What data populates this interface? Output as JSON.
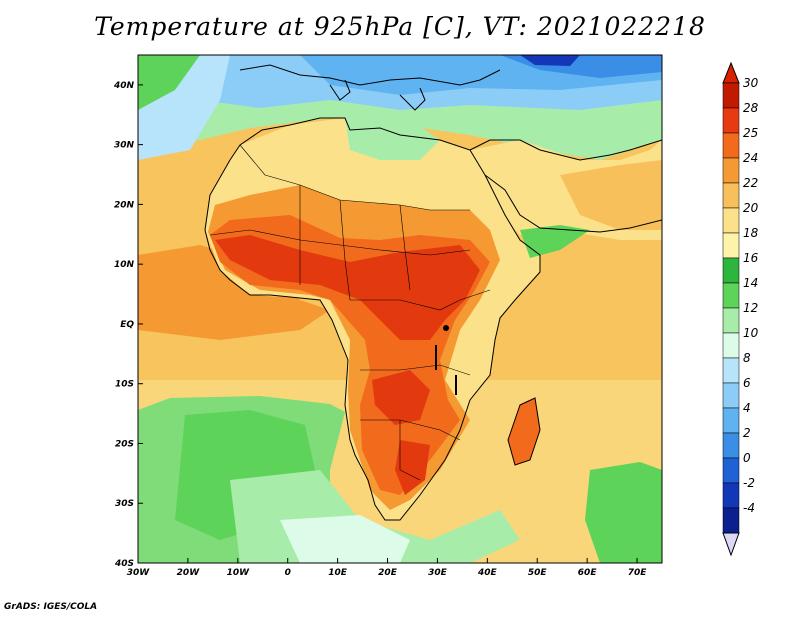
{
  "title": "Temperature at 925hPa [C], VT: 2021022218",
  "credit": "GrADS: IGES/COLA",
  "map": {
    "variable": "Temperature at 925hPa",
    "units": "C",
    "valid_time": "2021022218",
    "lon_range": [
      -30,
      75
    ],
    "lat_range": [
      -40,
      45
    ],
    "x_ticks": [
      "30W",
      "20W",
      "10W",
      "0",
      "10E",
      "20E",
      "30E",
      "40E",
      "50E",
      "60E",
      "70E"
    ],
    "y_ticks": [
      "40N",
      "30N",
      "20N",
      "10N",
      "EQ",
      "10S",
      "20S",
      "30S",
      "40S"
    ]
  },
  "colorbar": {
    "labels": [
      "30",
      "28",
      "25",
      "24",
      "22",
      "20",
      "18",
      "16",
      "14",
      "12",
      "10",
      "8",
      "6",
      "4",
      "2",
      "0",
      "-2",
      "-4"
    ],
    "colors": [
      "#c21a00",
      "#e83a10",
      "#f26a1c",
      "#f59a32",
      "#f8c05a",
      "#fbe18a",
      "#fdf3aa",
      "#2eb53e",
      "#5ed35a",
      "#a8ecaa",
      "#dcfbe8",
      "#b8e4fb",
      "#8ccdf7",
      "#5fb3f0",
      "#3b8ee6",
      "#1e62d6",
      "#1238b8",
      "#0b1f8f"
    ],
    "max_color": "#d92000",
    "min_color": "#dcd8f5"
  },
  "colors": {
    "sea_mid": "#f8c45e",
    "sea_south": "#f9d679",
    "cool_south": "#5ed35a",
    "land_hot": "#e23a0e",
    "land_warm": "#f07a25",
    "north_cool": "#8ccdf7",
    "north_cold": "#3b8ee6",
    "coast": "#000000"
  }
}
